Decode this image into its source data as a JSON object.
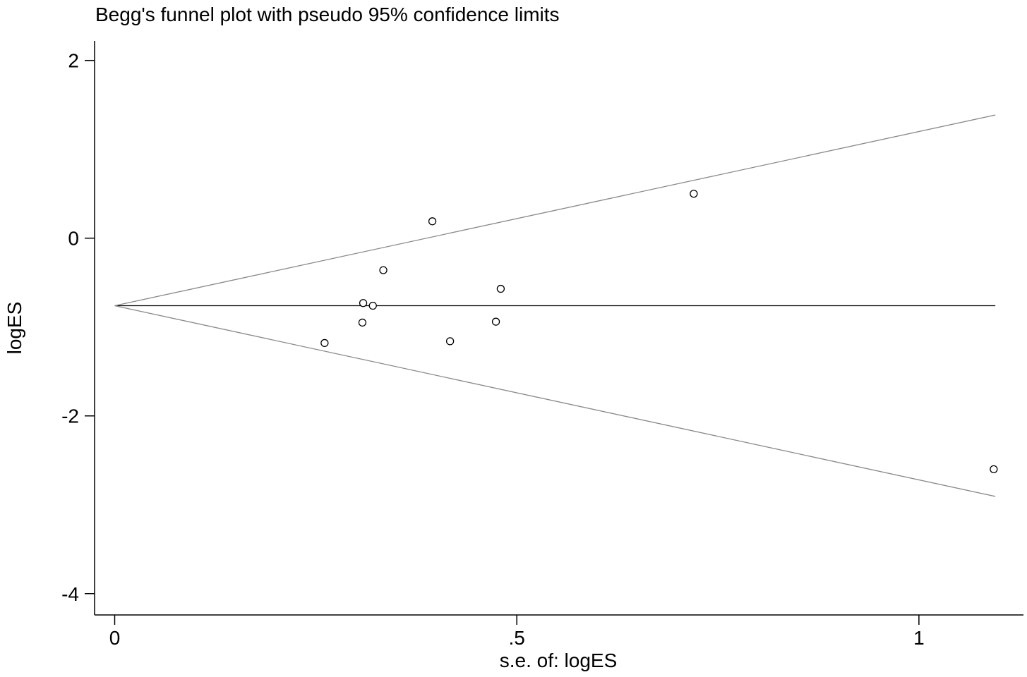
{
  "chart_data": {
    "type": "scatter",
    "title": "Begg's funnel plot with pseudo 95% confidence limits",
    "xlabel": "s.e. of: logES",
    "ylabel": "logES",
    "xlim": [
      -0.025,
      1.13
    ],
    "ylim": [
      -4.24,
      2.22
    ],
    "xticks": [
      {
        "value": 0,
        "label": "0"
      },
      {
        "value": 0.5,
        "label": ".5"
      },
      {
        "value": 1,
        "label": "1"
      }
    ],
    "yticks": [
      {
        "value": 2,
        "label": "2"
      },
      {
        "value": 0,
        "label": "0"
      },
      {
        "value": -2,
        "label": "-2"
      },
      {
        "value": -4,
        "label": "-4"
      }
    ],
    "grid": false,
    "pooled_estimate": -0.76,
    "funnel_se_max": 1.095,
    "line_color": "#8a8a8a",
    "marker_color": "#000000",
    "points": [
      {
        "x": 0.261,
        "y": -1.18
      },
      {
        "x": 0.308,
        "y": -0.95
      },
      {
        "x": 0.309,
        "y": -0.73
      },
      {
        "x": 0.321,
        "y": -0.76
      },
      {
        "x": 0.334,
        "y": -0.36
      },
      {
        "x": 0.395,
        "y": 0.19
      },
      {
        "x": 0.417,
        "y": -1.16
      },
      {
        "x": 0.474,
        "y": -0.94
      },
      {
        "x": 0.48,
        "y": -0.57
      },
      {
        "x": 0.72,
        "y": 0.5
      },
      {
        "x": 1.093,
        "y": -2.6
      }
    ]
  }
}
